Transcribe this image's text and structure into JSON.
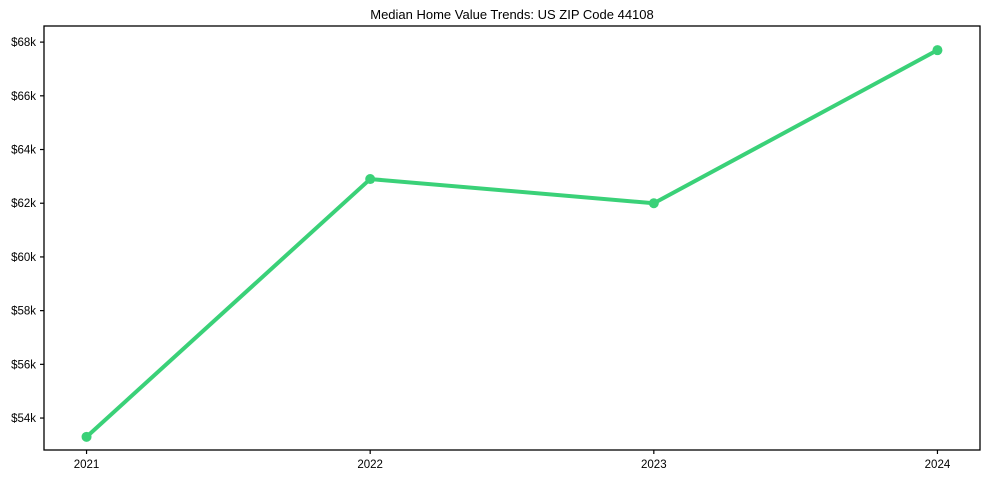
{
  "chart_data": {
    "type": "line",
    "title": "Median Home Value Trends: US ZIP Code 44108",
    "categories": [
      "2021",
      "2022",
      "2023",
      "2024"
    ],
    "series": [
      {
        "name": "Median Home Value",
        "values": [
          53300,
          62900,
          62000,
          67700
        ]
      }
    ],
    "xlabel": "",
    "ylabel": "",
    "ylim": [
      52810,
      68600
    ],
    "yticks": [
      54000,
      56000,
      58000,
      60000,
      62000,
      64000,
      66000,
      68000
    ],
    "ytick_labels": [
      "$54k",
      "$56k",
      "$58k",
      "$60k",
      "$62k",
      "$64k",
      "$66k",
      "$68k"
    ],
    "xtick_labels": [
      "2021",
      "2022",
      "2023",
      "2024"
    ],
    "grid": false,
    "legend_position": "none",
    "line_color": "#3ad178",
    "marker": "circle",
    "marker_size": 5,
    "line_width": 4,
    "frame_color": "#000000",
    "background_color": "#ffffff"
  }
}
